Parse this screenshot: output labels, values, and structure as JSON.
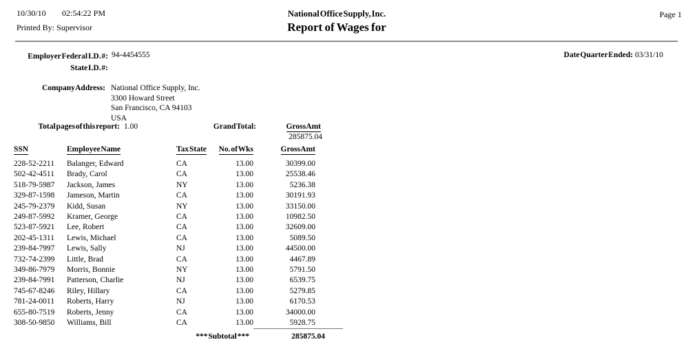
{
  "header": {
    "print_date": "10/30/10",
    "print_time": "02:54:22 PM",
    "printed_by_label": "Printed By:",
    "printed_by": "Supervisor",
    "company_name": "National Office Supply, Inc.",
    "report_title": "Report of Wages for",
    "page_label": "Page 1"
  },
  "employer": {
    "federal_id_label": "Employer Federal I.D. #:",
    "federal_id": "94-4454555",
    "state_id_label": "State I.D. #:",
    "state_id": "",
    "quarter_ended_label": "Date Quarter Ended:",
    "quarter_ended": "03/31/10"
  },
  "company": {
    "address_label": "Company Address:",
    "address_lines": [
      "National Office Supply, Inc.",
      "3300 Howard Street",
      "San Francisco, CA 94103",
      "USA"
    ]
  },
  "summary": {
    "total_pages_label": "Total pages of this report:",
    "total_pages": "1.00",
    "grand_total_label": "Grand Total:",
    "gross_amt_label": "Gross Amt",
    "grand_total_value": "285875.04"
  },
  "table": {
    "headers": [
      "SSN",
      "Employee Name",
      "Tax State",
      "No. of Wks",
      "Gross Amt"
    ],
    "rows": [
      [
        "228-52-2211",
        "Balanger, Edward",
        "CA",
        "13.00",
        "30399.00"
      ],
      [
        "502-42-4511",
        "Brady, Carol",
        "CA",
        "13.00",
        "25538.46"
      ],
      [
        "518-79-5987",
        "Jackson, James",
        "NY",
        "13.00",
        "5236.38"
      ],
      [
        "329-87-1598",
        "Jameson, Martin",
        "CA",
        "13.00",
        "30191.93"
      ],
      [
        "245-79-2379",
        "Kidd, Susan",
        "NY",
        "13.00",
        "33150.00"
      ],
      [
        "249-87-5992",
        "Kramer, George",
        "CA",
        "13.00",
        "10982.50"
      ],
      [
        "523-87-5921",
        "Lee, Robert",
        "CA",
        "13.00",
        "32609.00"
      ],
      [
        "202-45-1311",
        "Lewis, Michael",
        "CA",
        "13.00",
        "5089.50"
      ],
      [
        "239-84-7997",
        "Lewis, Sally",
        "NJ",
        "13.00",
        "44500.00"
      ],
      [
        "732-74-2399",
        "Little, Brad",
        "CA",
        "13.00",
        "4467.89"
      ],
      [
        "349-86-7979",
        "Morris, Bonnie",
        "NY",
        "13.00",
        "5791.50"
      ],
      [
        "239-84-7991",
        "Patterson, Charlie",
        "NJ",
        "13.00",
        "6539.75"
      ],
      [
        "745-67-8246",
        "Riley, Hillary",
        "CA",
        "13.00",
        "5279.85"
      ],
      [
        "781-24-0011",
        "Roberts, Harry",
        "NJ",
        "13.00",
        "6170.53"
      ],
      [
        "655-80-7519",
        "Roberts, Jenny",
        "CA",
        "13.00",
        "34000.00"
      ],
      [
        "308-50-9850",
        "Williams, Bill",
        "CA",
        "13.00",
        "5928.75"
      ]
    ],
    "subtotal_label": "*** Subtotal ***",
    "subtotal_value": "285875.04"
  }
}
